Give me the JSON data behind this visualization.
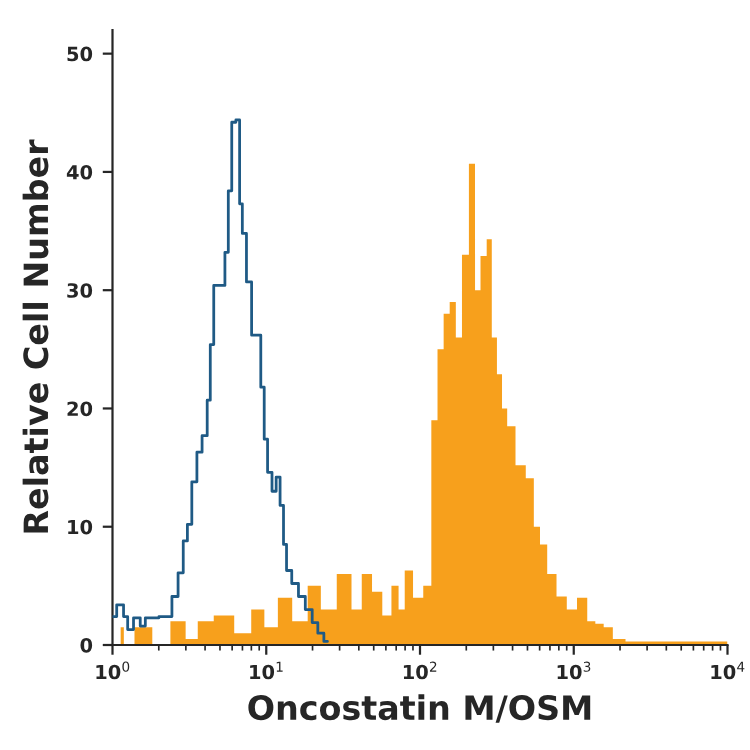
{
  "chart_data": {
    "type": "step",
    "xlabel": "Oncostatin M/OSM",
    "ylabel": "Relative Cell Number",
    "log": "x",
    "xlim": [
      1,
      10000
    ],
    "ylim": [
      0,
      52
    ],
    "xticks": [
      {
        "value": 1,
        "label": "10$^{0}$"
      },
      {
        "value": 10,
        "label": "10$^{1}$"
      },
      {
        "value": 100,
        "label": "10$^{2}$"
      },
      {
        "value": 1000,
        "label": "10$^{3}$"
      },
      {
        "value": 10000,
        "label": "10$^{4}$"
      }
    ],
    "yticks": [
      0,
      10,
      20,
      30,
      40,
      50
    ],
    "grid": false,
    "legend": false,
    "series": [
      {
        "type": "area",
        "color": "#f7a01c",
        "x": [
          1.13,
          1.24,
          1.54,
          2.09,
          2.67,
          3.31,
          3.86,
          5.25,
          7.13,
          8.84,
          10.6,
          13.2,
          16.3,
          20.9,
          24.4,
          33.1,
          38.6,
          45.0,
          52.5,
          61.2,
          69.2,
          75.9,
          83.2,
          97.0,
          113,
          124,
          136,
          149,
          163,
          179,
          196,
          220,
          236,
          259,
          284,
          302,
          331,
          352,
          386,
          450,
          525,
          575,
          631,
          713,
          832,
          970,
          1130,
          1318,
          1445,
          1686,
          1905,
          2437,
          10000
        ],
        "values": [
          1.5,
          0,
          1.5,
          0,
          2,
          0.5,
          2,
          2.5,
          1,
          3,
          1.5,
          4,
          2,
          5,
          3,
          6,
          3,
          6,
          4.5,
          2.5,
          5,
          3,
          6.3,
          4,
          5,
          19,
          25,
          28,
          29,
          26,
          33,
          40.7,
          30,
          32.9,
          34.3,
          26,
          22.9,
          20,
          18.5,
          15.2,
          14.1,
          10,
          8.5,
          6,
          4.1,
          3,
          4,
          2,
          1.8,
          1.5,
          0.5,
          0.3,
          0.3
        ]
      },
      {
        "color": "#1f5a85",
        "x": [
          1,
          1.13,
          1.23,
          1.28,
          1.46,
          1.57,
          1.7,
          2.31,
          2.56,
          2.78,
          2.99,
          3.15,
          3.41,
          3.67,
          3.98,
          4.28,
          4.37,
          4.74,
          5.25,
          5.52,
          5.81,
          6.12,
          6.57,
          6.85,
          7.13,
          7.74,
          8.32,
          8.93,
          9.5,
          9.9,
          10.5,
          11.3,
          11.9,
          12.7,
          13.2,
          13.9,
          15.4,
          17.0,
          18.9,
          20.9,
          22.4,
          25
        ],
        "values": [
          2.4,
          3.4,
          2.4,
          1.3,
          2.3,
          1.6,
          2.3,
          2.4,
          4.1,
          6.1,
          8.8,
          10.2,
          13.8,
          16.3,
          17.7,
          20.7,
          25.4,
          30.4,
          30.4,
          33.2,
          38.4,
          44.2,
          44.4,
          37.3,
          34.8,
          30.7,
          26.2,
          26.2,
          21.8,
          17.4,
          14.6,
          13.0,
          14.2,
          11.8,
          8.5,
          6.3,
          5.2,
          4.1,
          3.0,
          1.9,
          1.0,
          0.3
        ]
      }
    ]
  }
}
